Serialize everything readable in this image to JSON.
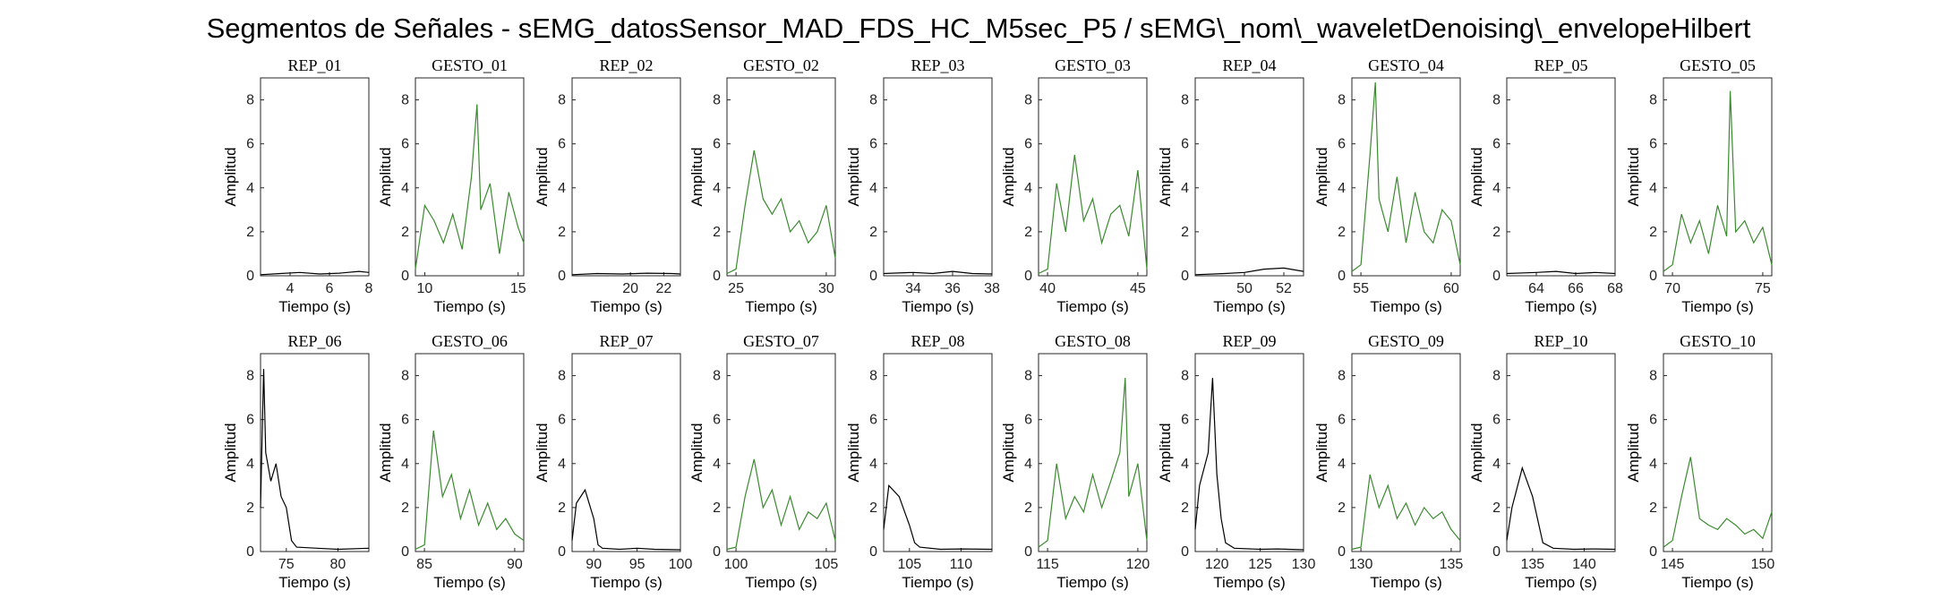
{
  "title": "Segmentos de Señales - sEMG_datosSensor_MAD_FDS_HC_M5sec_P5 / sEMG\\_nom\\_waveletDenoising\\_envelopeHilbert",
  "colors": {
    "rep": "#000000",
    "gesto": "#3a8a2e"
  },
  "chart_data": [
    {
      "type": "line",
      "title": "REP_01",
      "xlabel": "Tiempo (s)",
      "ylabel": "Amplitud",
      "xlim": [
        2.5,
        8
      ],
      "ylim": [
        0,
        9
      ],
      "xticks": [
        "4",
        "6",
        "8"
      ],
      "yticks": [
        "0",
        "2",
        "4",
        "6",
        "8"
      ],
      "kind": "rep",
      "x": [
        2.5,
        3.5,
        4.5,
        5.5,
        6.5,
        7.5,
        8
      ],
      "y": [
        0.05,
        0.1,
        0.15,
        0.08,
        0.12,
        0.2,
        0.15
      ]
    },
    {
      "type": "line",
      "title": "GESTO_01",
      "xlabel": "Tiempo (s)",
      "ylabel": "Amplitud",
      "xlim": [
        9.5,
        15.3
      ],
      "ylim": [
        0,
        9
      ],
      "xticks": [
        "10",
        "15"
      ],
      "yticks": [
        "0",
        "2",
        "4",
        "6",
        "8"
      ],
      "kind": "gesto",
      "x": [
        9.5,
        10,
        10.5,
        11,
        11.5,
        12,
        12.5,
        12.8,
        13,
        13.5,
        14,
        14.5,
        15,
        15.3
      ],
      "y": [
        0.3,
        3.2,
        2.5,
        1.5,
        2.8,
        1.2,
        4.5,
        7.8,
        3.0,
        4.2,
        1.0,
        3.8,
        2.2,
        1.5
      ]
    },
    {
      "type": "line",
      "title": "REP_02",
      "xlabel": "Tiempo (s)",
      "ylabel": "Amplitud",
      "xlim": [
        16.5,
        23
      ],
      "ylim": [
        0,
        9
      ],
      "xticks": [
        "20",
        "22"
      ],
      "yticks": [
        "0",
        "2",
        "4",
        "6",
        "8"
      ],
      "kind": "rep",
      "x": [
        16.5,
        18,
        19.5,
        21,
        22.5,
        23
      ],
      "y": [
        0.05,
        0.1,
        0.08,
        0.12,
        0.1,
        0.08
      ]
    },
    {
      "type": "line",
      "title": "GESTO_02",
      "xlabel": "Tiempo (s)",
      "ylabel": "Amplitud",
      "xlim": [
        24.5,
        30.5
      ],
      "ylim": [
        0,
        9
      ],
      "xticks": [
        "25",
        "30"
      ],
      "yticks": [
        "0",
        "2",
        "4",
        "6",
        "8"
      ],
      "kind": "gesto",
      "x": [
        24.5,
        25,
        25.5,
        26,
        26.5,
        27,
        27.5,
        28,
        28.5,
        29,
        29.5,
        30,
        30.5
      ],
      "y": [
        0.1,
        0.3,
        3.2,
        5.7,
        3.5,
        2.8,
        3.5,
        2.0,
        2.5,
        1.5,
        2.0,
        3.2,
        0.8
      ]
    },
    {
      "type": "line",
      "title": "REP_03",
      "xlabel": "Tiempo (s)",
      "ylabel": "Amplitud",
      "xlim": [
        32.5,
        38
      ],
      "ylim": [
        0,
        9
      ],
      "xticks": [
        "34",
        "36",
        "38"
      ],
      "yticks": [
        "0",
        "2",
        "4",
        "6",
        "8"
      ],
      "kind": "rep",
      "x": [
        32.5,
        34,
        35,
        36,
        37,
        38
      ],
      "y": [
        0.1,
        0.15,
        0.1,
        0.2,
        0.1,
        0.08
      ]
    },
    {
      "type": "line",
      "title": "GESTO_03",
      "xlabel": "Tiempo (s)",
      "ylabel": "Amplitud",
      "xlim": [
        39.5,
        45.5
      ],
      "ylim": [
        0,
        9
      ],
      "xticks": [
        "40",
        "45"
      ],
      "yticks": [
        "0",
        "2",
        "4",
        "6",
        "8"
      ],
      "kind": "gesto",
      "x": [
        39.5,
        40,
        40.5,
        41,
        41.5,
        42,
        42.5,
        43,
        43.5,
        44,
        44.5,
        45,
        45.5
      ],
      "y": [
        0.1,
        0.3,
        4.2,
        2.0,
        5.5,
        2.5,
        3.5,
        1.5,
        2.8,
        3.2,
        1.8,
        4.8,
        0.3
      ]
    },
    {
      "type": "line",
      "title": "REP_04",
      "xlabel": "Tiempo (s)",
      "ylabel": "Amplitud",
      "xlim": [
        47.5,
        53
      ],
      "ylim": [
        0,
        9
      ],
      "xticks": [
        "50",
        "52"
      ],
      "yticks": [
        "0",
        "2",
        "4",
        "6",
        "8"
      ],
      "kind": "rep",
      "x": [
        47.5,
        49,
        50,
        51,
        52,
        53
      ],
      "y": [
        0.05,
        0.1,
        0.15,
        0.3,
        0.35,
        0.2
      ]
    },
    {
      "type": "line",
      "title": "GESTO_04",
      "xlabel": "Tiempo (s)",
      "ylabel": "Amplitud",
      "xlim": [
        54.5,
        60.5
      ],
      "ylim": [
        0,
        9
      ],
      "xticks": [
        "55",
        "60"
      ],
      "yticks": [
        "0",
        "2",
        "4",
        "6",
        "8"
      ],
      "kind": "gesto",
      "x": [
        54.5,
        55,
        55.5,
        55.8,
        56,
        56.5,
        57,
        57.5,
        58,
        58.5,
        59,
        59.5,
        60,
        60.5
      ],
      "y": [
        0.2,
        0.5,
        5.5,
        8.8,
        3.5,
        2.0,
        4.5,
        1.5,
        3.8,
        2.0,
        1.5,
        3.0,
        2.5,
        0.5
      ]
    },
    {
      "type": "line",
      "title": "REP_05",
      "xlabel": "Tiempo (s)",
      "ylabel": "Amplitud",
      "xlim": [
        62.5,
        68
      ],
      "ylim": [
        0,
        9
      ],
      "xticks": [
        "64",
        "66",
        "68"
      ],
      "yticks": [
        "0",
        "2",
        "4",
        "6",
        "8"
      ],
      "kind": "rep",
      "x": [
        62.5,
        64,
        65,
        66,
        67,
        68
      ],
      "y": [
        0.1,
        0.15,
        0.2,
        0.1,
        0.15,
        0.1
      ]
    },
    {
      "type": "line",
      "title": "GESTO_05",
      "xlabel": "Tiempo (s)",
      "ylabel": "Amplitud",
      "xlim": [
        69.5,
        75.5
      ],
      "ylim": [
        0,
        9
      ],
      "xticks": [
        "70",
        "75"
      ],
      "yticks": [
        "0",
        "2",
        "4",
        "6",
        "8"
      ],
      "kind": "gesto",
      "x": [
        69.5,
        70,
        70.5,
        71,
        71.5,
        72,
        72.5,
        73,
        73.2,
        73.5,
        74,
        74.5,
        75,
        75.5
      ],
      "y": [
        0.2,
        0.5,
        2.8,
        1.5,
        2.5,
        1.0,
        3.2,
        1.8,
        8.4,
        2.0,
        2.5,
        1.5,
        2.2,
        0.5
      ]
    },
    {
      "type": "line",
      "title": "REP_06",
      "xlabel": "Tiempo (s)",
      "ylabel": "Amplitud",
      "xlim": [
        72.5,
        83
      ],
      "ylim": [
        0,
        9
      ],
      "xticks": [
        "75",
        "80"
      ],
      "yticks": [
        "0",
        "2",
        "4",
        "6",
        "8"
      ],
      "kind": "rep",
      "x": [
        72.5,
        72.8,
        73,
        73.5,
        74,
        74.5,
        75,
        75.5,
        76,
        78,
        80,
        83
      ],
      "y": [
        2.0,
        8.3,
        4.5,
        3.2,
        4.0,
        2.5,
        2.0,
        0.5,
        0.2,
        0.15,
        0.1,
        0.15
      ]
    },
    {
      "type": "line",
      "title": "GESTO_06",
      "xlabel": "Tiempo (s)",
      "ylabel": "Amplitud",
      "xlim": [
        84.5,
        90.5
      ],
      "ylim": [
        0,
        9
      ],
      "xticks": [
        "85",
        "90"
      ],
      "yticks": [
        "0",
        "2",
        "4",
        "6",
        "8"
      ],
      "kind": "gesto",
      "x": [
        84.5,
        85,
        85.5,
        86,
        86.5,
        87,
        87.5,
        88,
        88.5,
        89,
        89.5,
        90,
        90.5
      ],
      "y": [
        0.1,
        0.3,
        5.5,
        2.5,
        3.5,
        1.5,
        2.8,
        1.2,
        2.2,
        1.0,
        1.5,
        0.8,
        0.5
      ]
    },
    {
      "type": "line",
      "title": "REP_07",
      "xlabel": "Tiempo (s)",
      "ylabel": "Amplitud",
      "xlim": [
        87.5,
        100
      ],
      "ylim": [
        0,
        9
      ],
      "xticks": [
        "90",
        "95",
        "100"
      ],
      "yticks": [
        "0",
        "2",
        "4",
        "6",
        "8"
      ],
      "kind": "rep",
      "x": [
        87.5,
        88,
        89,
        90,
        90.5,
        91,
        93,
        95,
        97,
        100
      ],
      "y": [
        0.5,
        2.2,
        2.8,
        1.5,
        0.3,
        0.15,
        0.1,
        0.15,
        0.1,
        0.08
      ]
    },
    {
      "type": "line",
      "title": "GESTO_07",
      "xlabel": "Tiempo (s)",
      "ylabel": "Amplitud",
      "xlim": [
        99.5,
        105.5
      ],
      "ylim": [
        0,
        9
      ],
      "xticks": [
        "100",
        "105"
      ],
      "yticks": [
        "0",
        "2",
        "4",
        "6",
        "8"
      ],
      "kind": "gesto",
      "x": [
        99.5,
        100,
        100.5,
        101,
        101.5,
        102,
        102.5,
        103,
        103.5,
        104,
        104.5,
        105,
        105.5
      ],
      "y": [
        0.1,
        0.2,
        2.5,
        4.2,
        2.0,
        2.8,
        1.2,
        2.5,
        1.0,
        1.8,
        1.5,
        2.2,
        0.5
      ]
    },
    {
      "type": "line",
      "title": "REP_08",
      "xlabel": "Tiempo (s)",
      "ylabel": "Amplitud",
      "xlim": [
        102.5,
        113
      ],
      "ylim": [
        0,
        9
      ],
      "xticks": [
        "105",
        "110"
      ],
      "yticks": [
        "0",
        "2",
        "4",
        "6",
        "8"
      ],
      "kind": "rep",
      "x": [
        102.5,
        103,
        104,
        105,
        105.5,
        106,
        108,
        110,
        113
      ],
      "y": [
        1.0,
        3.0,
        2.5,
        1.2,
        0.4,
        0.2,
        0.1,
        0.12,
        0.1
      ]
    },
    {
      "type": "line",
      "title": "GESTO_08",
      "xlabel": "Tiempo (s)",
      "ylabel": "Amplitud",
      "xlim": [
        114.5,
        120.5
      ],
      "ylim": [
        0,
        9
      ],
      "xticks": [
        "115",
        "120"
      ],
      "yticks": [
        "0",
        "2",
        "4",
        "6",
        "8"
      ],
      "kind": "gesto",
      "x": [
        114.5,
        115,
        115.5,
        116,
        116.5,
        117,
        117.5,
        118,
        118.5,
        119,
        119.3,
        119.5,
        120,
        120.5
      ],
      "y": [
        0.2,
        0.5,
        4.0,
        1.5,
        2.5,
        1.8,
        3.5,
        2.0,
        3.2,
        4.5,
        7.9,
        2.5,
        4.0,
        0.5
      ]
    },
    {
      "type": "line",
      "title": "REP_09",
      "xlabel": "Tiempo (s)",
      "ylabel": "Amplitud",
      "xlim": [
        117.5,
        130
      ],
      "ylim": [
        0,
        9
      ],
      "xticks": [
        "120",
        "125",
        "130"
      ],
      "yticks": [
        "0",
        "2",
        "4",
        "6",
        "8"
      ],
      "kind": "rep",
      "x": [
        117.5,
        118,
        119,
        119.5,
        120,
        120.5,
        121,
        122,
        125,
        127,
        130
      ],
      "y": [
        1.0,
        3.0,
        4.5,
        7.9,
        3.5,
        1.5,
        0.4,
        0.15,
        0.1,
        0.12,
        0.08
      ]
    },
    {
      "type": "line",
      "title": "GESTO_09",
      "xlabel": "Tiempo (s)",
      "ylabel": "Amplitud",
      "xlim": [
        129.5,
        135.5
      ],
      "ylim": [
        0,
        9
      ],
      "xticks": [
        "130",
        "135"
      ],
      "yticks": [
        "0",
        "2",
        "4",
        "6",
        "8"
      ],
      "kind": "gesto",
      "x": [
        129.5,
        130,
        130.5,
        131,
        131.5,
        132,
        132.5,
        133,
        133.5,
        134,
        134.5,
        135,
        135.5
      ],
      "y": [
        0.1,
        0.2,
        3.5,
        2.0,
        3.0,
        1.5,
        2.2,
        1.2,
        2.0,
        1.5,
        1.8,
        1.0,
        0.5
      ]
    },
    {
      "type": "line",
      "title": "REP_10",
      "xlabel": "Tiempo (s)",
      "ylabel": "Amplitud",
      "xlim": [
        132.5,
        143
      ],
      "ylim": [
        0,
        9
      ],
      "xticks": [
        "135",
        "140"
      ],
      "yticks": [
        "0",
        "2",
        "4",
        "6",
        "8"
      ],
      "kind": "rep",
      "x": [
        132.5,
        133,
        134,
        135,
        136,
        137,
        139,
        141,
        143
      ],
      "y": [
        0.5,
        2.0,
        3.8,
        2.5,
        0.4,
        0.15,
        0.1,
        0.12,
        0.1
      ]
    },
    {
      "type": "line",
      "title": "GESTO_10",
      "xlabel": "Tiempo (s)",
      "ylabel": "Amplitud",
      "xlim": [
        144.5,
        150.5
      ],
      "ylim": [
        0,
        9
      ],
      "xticks": [
        "145",
        "150"
      ],
      "yticks": [
        "0",
        "2",
        "4",
        "6",
        "8"
      ],
      "kind": "gesto",
      "x": [
        144.5,
        145,
        145.5,
        146,
        146.5,
        147,
        147.5,
        148,
        148.5,
        149,
        149.5,
        150,
        150.5
      ],
      "y": [
        0.2,
        0.5,
        2.5,
        4.3,
        1.5,
        1.2,
        1.0,
        1.5,
        1.2,
        0.8,
        1.0,
        0.6,
        1.8
      ]
    }
  ]
}
